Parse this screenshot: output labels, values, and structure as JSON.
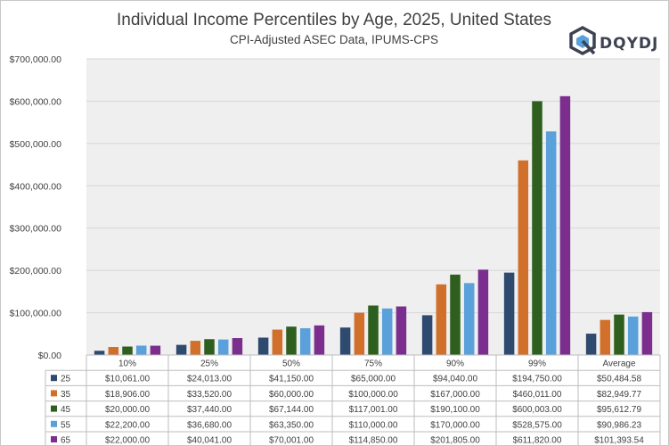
{
  "title": "Individual Income Percentiles by Age, 2025, United States",
  "subtitle": "CPI-Adjusted ASEC Data, IPUMS-CPS",
  "logo": {
    "text": "DQYDJ",
    "icon": "dqydj-cube-logo-icon"
  },
  "chart_data": {
    "type": "bar",
    "categories": [
      "10%",
      "25%",
      "50%",
      "75%",
      "90%",
      "99%",
      "Average"
    ],
    "series": [
      {
        "name": "25",
        "color": "#2e4a6e",
        "values": [
          10061.0,
          24013.0,
          41150.0,
          65000.0,
          94040.0,
          194750.0,
          50484.58
        ],
        "labels": [
          "$10,061.00",
          "$24,013.00",
          "$41,150.00",
          "$65,000.00",
          "$94,040.00",
          "$194,750.00",
          "$50,484.58"
        ]
      },
      {
        "name": "35",
        "color": "#d0702b",
        "values": [
          18906.0,
          33520.0,
          60000.0,
          100000.0,
          167000.0,
          460011.0,
          82949.77
        ],
        "labels": [
          "$18,906.00",
          "$33,520.00",
          "$60,000.00",
          "$100,000.00",
          "$167,000.00",
          "$460,011.00",
          "$82,949.77"
        ]
      },
      {
        "name": "45",
        "color": "#2f5f1f",
        "values": [
          20000.0,
          37440.0,
          67144.0,
          117001.0,
          190100.0,
          600003.0,
          95612.79
        ],
        "labels": [
          "$20,000.00",
          "$37,440.00",
          "$67,144.00",
          "$117,001.00",
          "$190,100.00",
          "$600,003.00",
          "$95,612.79"
        ]
      },
      {
        "name": "55",
        "color": "#5aa0db",
        "values": [
          22200.0,
          36680.0,
          63350.0,
          110000.0,
          170000.0,
          528575.0,
          90986.23
        ],
        "labels": [
          "$22,200.00",
          "$36,680.00",
          "$63,350.00",
          "$110,000.00",
          "$170,000.00",
          "$528,575.00",
          "$90,986.23"
        ]
      },
      {
        "name": "65",
        "color": "#7b2e8e",
        "values": [
          22000.0,
          40041.0,
          70001.0,
          114850.0,
          201805.0,
          611820.0,
          101393.54
        ],
        "labels": [
          "$22,000.00",
          "$40,041.00",
          "$70,001.00",
          "$114,850.00",
          "$201,805.00",
          "$611,820.00",
          "$101,393.54"
        ]
      }
    ],
    "ylim": [
      0,
      700000
    ],
    "yticks": [
      0,
      100000,
      200000,
      300000,
      400000,
      500000,
      600000,
      700000
    ],
    "ytick_labels": [
      "$0.00",
      "$100,000.00",
      "$200,000.00",
      "$300,000.00",
      "$400,000.00",
      "$500,000.00",
      "$600,000.00",
      "$700,000.00"
    ],
    "grid": true,
    "plot_background": "#efefef",
    "legend": "data-table-below"
  }
}
